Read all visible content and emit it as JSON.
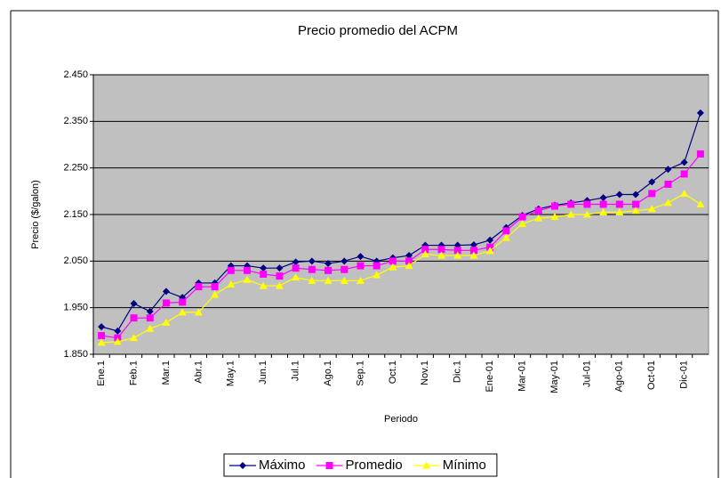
{
  "chart_data": {
    "type": "line",
    "title": "Precio promedio del ACPM",
    "x_label": "Periodo",
    "y_label": "Precio ($/galon)",
    "categories": [
      "Ene.1",
      null,
      "Feb.1",
      null,
      "Mar.1",
      null,
      "Abr.1",
      null,
      "May.1",
      null,
      "Jun.1",
      null,
      "Jul.1",
      null,
      "Ago.1",
      null,
      "Sep.1",
      null,
      "Oct.1",
      null,
      "Nov.1",
      null,
      "Dic.1",
      null,
      "Ene-01",
      null,
      "Mar-01",
      null,
      "May-01",
      null,
      "Jul-01",
      null,
      "Ago-01",
      null,
      "Oct-01",
      null,
      "Dic-01",
      null
    ],
    "series": [
      {
        "name": "Máximo",
        "color": "#000080",
        "marker": "diamond",
        "values": [
          1.909,
          1.9,
          1.959,
          1.942,
          1.985,
          1.972,
          2.003,
          2.003,
          2.04,
          2.04,
          2.035,
          2.035,
          2.048,
          2.05,
          2.045,
          2.05,
          2.06,
          2.05,
          2.057,
          2.062,
          2.084,
          2.084,
          2.084,
          2.085,
          2.095,
          2.122,
          2.148,
          2.162,
          2.17,
          2.175,
          2.18,
          2.186,
          2.193,
          2.193,
          2.22,
          2.247,
          2.262,
          2.368
        ]
      },
      {
        "name": "Promedio",
        "color": "#ff00ff",
        "marker": "square",
        "values": [
          1.89,
          1.885,
          1.928,
          1.928,
          1.96,
          1.962,
          1.995,
          1.995,
          2.03,
          2.03,
          2.022,
          2.018,
          2.035,
          2.032,
          2.03,
          2.032,
          2.04,
          2.04,
          2.05,
          2.05,
          2.075,
          2.075,
          2.073,
          2.073,
          2.08,
          2.115,
          2.145,
          2.158,
          2.168,
          2.172,
          2.172,
          2.172,
          2.172,
          2.172,
          2.195,
          2.215,
          2.237,
          2.28
        ]
      },
      {
        "name": "Mínimo",
        "color": "#ffff00",
        "marker": "triangle",
        "values": [
          1.875,
          1.877,
          1.885,
          1.905,
          1.918,
          1.94,
          1.94,
          1.978,
          2.0,
          2.01,
          1.997,
          1.997,
          2.015,
          2.008,
          2.008,
          2.008,
          2.008,
          2.02,
          2.037,
          2.04,
          2.065,
          2.062,
          2.062,
          2.062,
          2.072,
          2.1,
          2.13,
          2.142,
          2.145,
          2.15,
          2.15,
          2.155,
          2.155,
          2.158,
          2.162,
          2.175,
          2.195,
          2.172
        ]
      }
    ],
    "ylim": [
      1.85,
      2.45
    ],
    "yticks": [
      {
        "value": 1.85,
        "label": "1.850"
      },
      {
        "value": 1.95,
        "label": "1.950"
      },
      {
        "value": 2.05,
        "label": "2.050"
      },
      {
        "value": 2.15,
        "label": "2.150"
      },
      {
        "value": 2.25,
        "label": "2.250"
      },
      {
        "value": 2.35,
        "label": "2.350"
      },
      {
        "value": 2.45,
        "label": "2.450"
      }
    ],
    "grid": true,
    "plot_background": "#c0c0c0",
    "legend": "bottom"
  }
}
